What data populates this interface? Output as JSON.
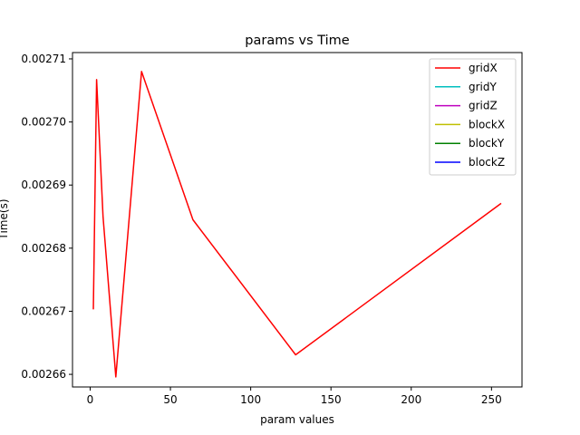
{
  "chart_data": {
    "type": "line",
    "title": "params vs Time",
    "xlabel": "param values",
    "ylabel": "Time(s)",
    "xlim": [
      -11,
      269
    ],
    "ylim": [
      0.002658,
      0.002711
    ],
    "xticks": [
      0,
      50,
      100,
      150,
      200,
      250
    ],
    "xtick_labels": [
      "0",
      "50",
      "100",
      "150",
      "200",
      "250"
    ],
    "yticks": [
      0.00266,
      0.00267,
      0.00268,
      0.00269,
      0.0027,
      0.00271
    ],
    "ytick_labels": [
      "0.00266",
      "0.00267",
      "0.00268",
      "0.00269",
      "0.00270",
      "0.00271"
    ],
    "grid": false,
    "legend_position": "top-right",
    "series": [
      {
        "name": "gridX",
        "color": "#ff0000",
        "x": [
          2,
          4,
          8,
          16,
          32,
          64,
          128,
          256
        ],
        "y": [
          0.0026703,
          0.0027067,
          0.002685,
          0.0026596,
          0.002708,
          0.0026845,
          0.0026631,
          0.0026871
        ]
      },
      {
        "name": "gridY",
        "color": "#00bfbf",
        "x": [],
        "y": []
      },
      {
        "name": "gridZ",
        "color": "#bf00bf",
        "x": [],
        "y": []
      },
      {
        "name": "blockX",
        "color": "#bfbf00",
        "x": [],
        "y": []
      },
      {
        "name": "blockY",
        "color": "#008000",
        "x": [],
        "y": []
      },
      {
        "name": "blockZ",
        "color": "#0000ff",
        "x": [],
        "y": []
      }
    ]
  }
}
